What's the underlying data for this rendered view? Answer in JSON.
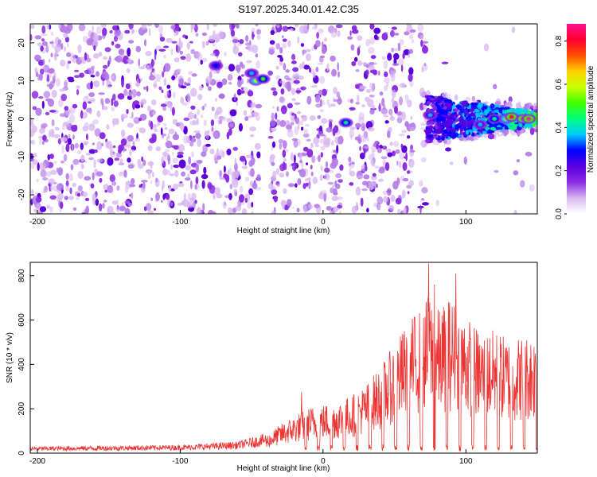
{
  "title": "S197.2025.340.01.42.C35",
  "chart_data": [
    {
      "type": "heatmap",
      "name": "spectrogram",
      "xlabel": "Height of straight line (km)",
      "ylabel": "Frequency (Hz)",
      "xlim": [
        -205,
        150
      ],
      "ylim": [
        -25,
        25
      ],
      "xticks": [
        -200,
        -100,
        0,
        100
      ],
      "yticks": [
        -20,
        -10,
        0,
        10,
        20
      ],
      "colorbar": {
        "label": "Normalized spectral amplitude",
        "range": [
          0.0,
          0.88
        ],
        "ticks": [
          0.0,
          0.2,
          0.4,
          0.6,
          0.8
        ],
        "colormap": [
          "#ffffff",
          "#d8b8f0",
          "#8a2be2",
          "#5a00e0",
          "#0000ff",
          "#00c8ff",
          "#00ff80",
          "#40ff00",
          "#c8ff00",
          "#ffd000",
          "#ff5000",
          "#ff0030",
          "#ff1090"
        ]
      },
      "hotspots": [
        {
          "x": -75,
          "y": 14,
          "amplitude": 0.32
        },
        {
          "x": -50,
          "y": 12,
          "amplitude": 0.35
        },
        {
          "x": -47,
          "y": 10,
          "amplitude": 0.55
        },
        {
          "x": -42,
          "y": 10.5,
          "amplitude": 0.5
        },
        {
          "x": 16,
          "y": -1,
          "amplitude": 0.45
        },
        {
          "x": 75,
          "y": 1,
          "amplitude": 0.35
        },
        {
          "x": 110,
          "y": -1.5,
          "amplitude": 0.4
        },
        {
          "x": 120,
          "y": 0,
          "amplitude": 0.45
        },
        {
          "x": 128,
          "y": 0,
          "amplitude": 0.6
        },
        {
          "x": 132,
          "y": 0.5,
          "amplitude": 0.8
        },
        {
          "x": 140,
          "y": 0,
          "amplitude": 0.85
        },
        {
          "x": 144,
          "y": 0,
          "amplitude": 0.88
        }
      ],
      "data_gaps": [
        [
          -45,
          -37
        ],
        [
          13,
          18
        ],
        [
          63,
          68
        ]
      ],
      "low_signal_region": [
        72,
        150
      ]
    },
    {
      "type": "line",
      "name": "snr",
      "xlabel": "Height of straight line (km)",
      "ylabel": "SNR (10 * v/v)",
      "xlim": [
        -205,
        150
      ],
      "ylim": [
        0,
        860
      ],
      "xticks": [
        -200,
        -100,
        0,
        100
      ],
      "yticks": [
        0,
        200,
        400,
        600,
        800
      ],
      "color": "#ee3333",
      "envelope": {
        "x": [
          -205,
          -100,
          -60,
          -40,
          -30,
          -20,
          -10,
          0,
          10,
          20,
          30,
          40,
          50,
          60,
          70,
          75,
          80,
          90,
          100,
          110,
          120,
          130,
          140,
          150
        ],
        "y": [
          20,
          25,
          35,
          60,
          100,
          130,
          160,
          170,
          180,
          200,
          240,
          300,
          380,
          460,
          520,
          560,
          500,
          540,
          480,
          420,
          430,
          400,
          410,
          420
        ]
      },
      "peaks": [
        {
          "x": -15,
          "y": 275
        },
        {
          "x": 74,
          "y": 855
        },
        {
          "x": 78,
          "y": 760
        },
        {
          "x": 93,
          "y": 810
        },
        {
          "x": 88,
          "y": 680
        }
      ]
    }
  ]
}
